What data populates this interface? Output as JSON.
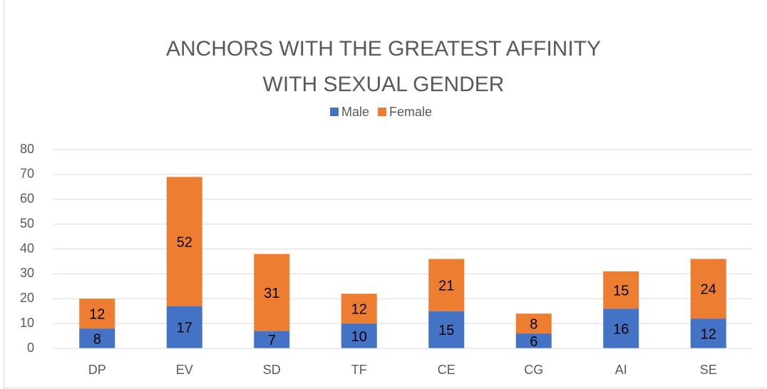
{
  "chart_data": {
    "type": "stacked_bar",
    "title": "ANCHORS WITH THE GREATEST AFFINITY WITH SEXUAL GENDER",
    "categories": [
      "DP",
      "EV",
      "SD",
      "TF",
      "CE",
      "CG",
      "AI",
      "SE"
    ],
    "series": [
      {
        "name": "Male",
        "color": "#4472c4",
        "values": [
          8,
          17,
          7,
          10,
          15,
          6,
          16,
          12
        ]
      },
      {
        "name": "Female",
        "color": "#ed7d31",
        "values": [
          12,
          52,
          31,
          12,
          21,
          8,
          15,
          24
        ]
      }
    ],
    "ylim": [
      0,
      80
    ],
    "yticks": [
      0,
      10,
      20,
      30,
      40,
      50,
      60,
      70,
      80
    ],
    "grid": true,
    "legend": "top"
  }
}
